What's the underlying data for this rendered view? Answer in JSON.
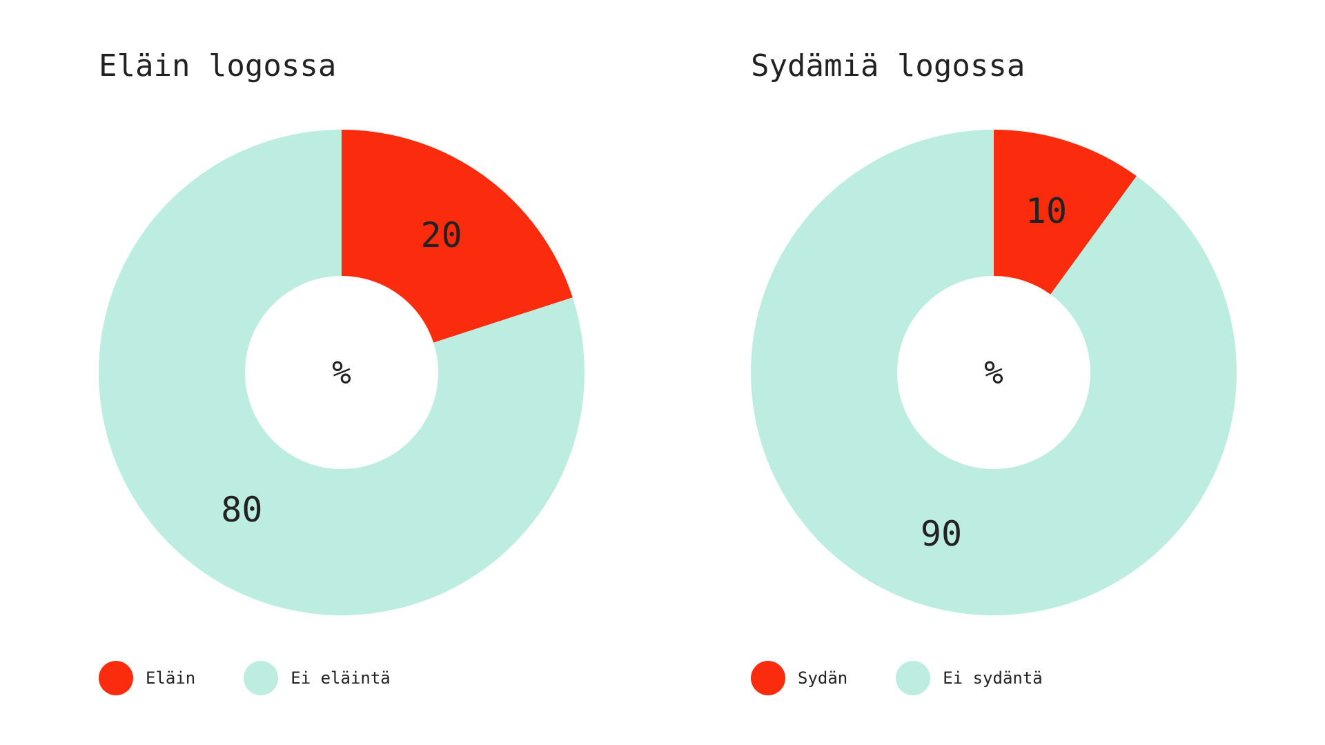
{
  "colors": {
    "accent": "#FB2C0E",
    "mint": "#BDECE1",
    "text": "#222222"
  },
  "chart_data": [
    {
      "type": "pie",
      "title": "Eläin logossa",
      "center_label": "%",
      "categories": [
        "Eläin",
        "Ei eläintä"
      ],
      "values": [
        20,
        80
      ],
      "colors": [
        "#FB2C0E",
        "#BDECE1"
      ],
      "legend": [
        "Eläin",
        "Ei eläintä"
      ],
      "legend_position": "bottom-left"
    },
    {
      "type": "pie",
      "title": "Sydämiä logossa",
      "center_label": "%",
      "categories": [
        "Sydän",
        "Ei sydäntä"
      ],
      "values": [
        10,
        90
      ],
      "colors": [
        "#FB2C0E",
        "#BDECE1"
      ],
      "legend": [
        "Sydän",
        "Ei sydäntä"
      ],
      "legend_position": "bottom-left"
    }
  ]
}
